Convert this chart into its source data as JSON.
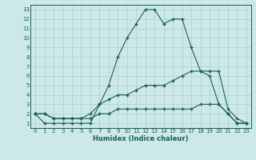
{
  "xlabel": "Humidex (Indice chaleur)",
  "xlim": [
    -0.5,
    23.5
  ],
  "ylim": [
    0.5,
    13.5
  ],
  "yticks": [
    1,
    2,
    3,
    4,
    5,
    6,
    7,
    8,
    9,
    10,
    11,
    12,
    13
  ],
  "xticks": [
    0,
    1,
    2,
    3,
    4,
    5,
    6,
    7,
    8,
    9,
    10,
    11,
    12,
    13,
    14,
    15,
    16,
    17,
    18,
    19,
    20,
    21,
    22,
    23
  ],
  "bg_color": "#cce9e7",
  "line_color": "#1a5f5a",
  "grid_color": "#aacfcc",
  "line1_x": [
    0,
    1,
    2,
    3,
    4,
    5,
    6,
    7,
    8,
    9,
    10,
    11,
    12,
    13,
    14,
    15,
    16,
    17,
    18,
    19,
    20,
    21,
    22,
    23
  ],
  "line1_y": [
    2,
    1,
    1,
    1,
    1,
    1,
    1,
    3,
    5,
    8,
    10,
    11.5,
    13,
    13,
    11.5,
    12,
    12,
    9,
    6.5,
    6,
    3,
    2,
    1,
    1
  ],
  "line2_x": [
    0,
    1,
    2,
    3,
    4,
    5,
    6,
    7,
    8,
    9,
    10,
    11,
    12,
    13,
    14,
    15,
    16,
    17,
    18,
    19,
    20,
    21,
    22,
    23
  ],
  "line2_y": [
    2,
    2,
    1.5,
    1.5,
    1.5,
    1.5,
    2,
    3,
    3.5,
    4,
    4,
    4.5,
    5,
    5,
    5,
    5.5,
    6,
    6.5,
    6.5,
    6.5,
    6.5,
    2.5,
    1.5,
    1
  ],
  "line3_x": [
    0,
    1,
    2,
    3,
    4,
    5,
    6,
    7,
    8,
    9,
    10,
    11,
    12,
    13,
    14,
    15,
    16,
    17,
    18,
    19,
    20,
    21,
    22,
    23
  ],
  "line3_y": [
    2,
    2,
    1.5,
    1.5,
    1.5,
    1.5,
    1.5,
    2,
    2,
    2.5,
    2.5,
    2.5,
    2.5,
    2.5,
    2.5,
    2.5,
    2.5,
    2.5,
    3,
    3,
    3,
    2,
    1,
    1
  ]
}
